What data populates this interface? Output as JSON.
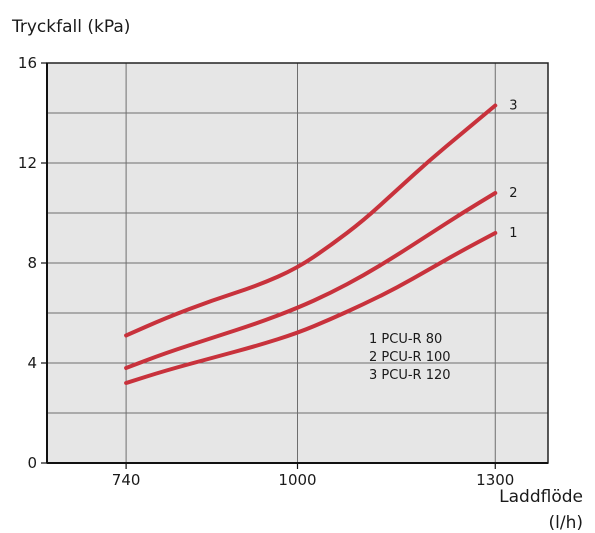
{
  "chart_data": {
    "type": "line",
    "ylabel": "Tryckfall  (kPa)",
    "xlabel_line1": "Laddflöde",
    "xlabel_line2": "(l/h)",
    "x_ticks": [
      740,
      1000,
      1300
    ],
    "y_ticks": [
      0,
      4,
      8,
      12,
      16
    ],
    "xlim": [
      620,
      1380
    ],
    "ylim": [
      0,
      16
    ],
    "grid": true,
    "colors": {
      "background": "#e6e6e6",
      "line": "#c8323c",
      "grid": "#6e6e6e"
    },
    "series": [
      {
        "label": "1",
        "x": [
          740,
          800,
          870,
          940,
          1000,
          1050,
          1100,
          1150,
          1200,
          1250,
          1300
        ],
        "values": [
          3.2,
          3.7,
          4.2,
          4.7,
          5.2,
          5.75,
          6.35,
          7.0,
          7.75,
          8.5,
          9.2
        ]
      },
      {
        "label": "2",
        "x": [
          740,
          800,
          870,
          940,
          1000,
          1050,
          1100,
          1150,
          1200,
          1250,
          1300
        ],
        "values": [
          3.8,
          4.4,
          5.0,
          5.6,
          6.2,
          6.8,
          7.5,
          8.3,
          9.15,
          10.0,
          10.8
        ]
      },
      {
        "label": "3",
        "x": [
          740,
          800,
          870,
          940,
          1000,
          1050,
          1100,
          1150,
          1200,
          1250,
          1300
        ],
        "values": [
          5.1,
          5.8,
          6.5,
          7.1,
          7.8,
          8.7,
          9.7,
          10.9,
          12.1,
          13.2,
          14.3
        ]
      }
    ],
    "legend": [
      "1 PCU-R 80",
      "2 PCU-R 100",
      "3 PCU-R 120"
    ]
  }
}
